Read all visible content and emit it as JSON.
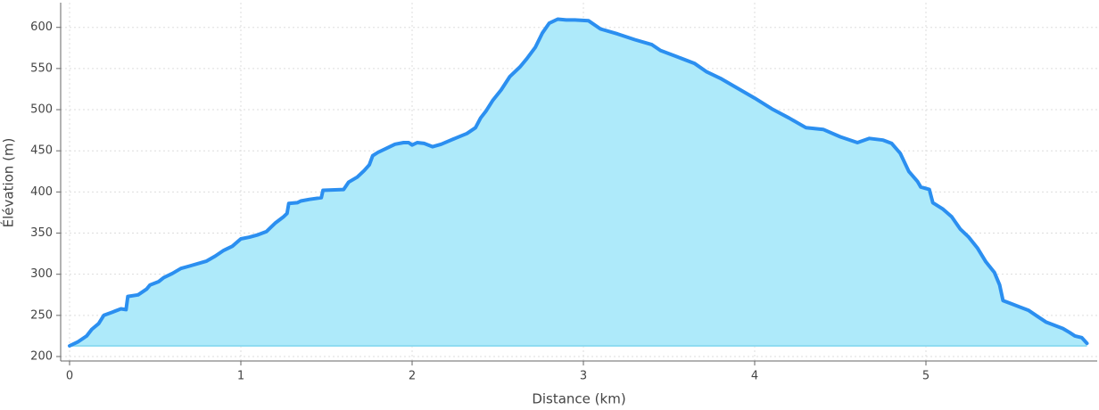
{
  "chart_data": {
    "type": "area",
    "x_label": "Distance (km)",
    "y_label": "Élévation (m)",
    "line_color": "#2b8ff0",
    "fill_color": "#aeeafa",
    "grid": true,
    "xlim": [
      -0.052,
      6.0
    ],
    "xticks": [
      0,
      1,
      2,
      3,
      4,
      5
    ],
    "ylim": [
      194.6,
      630
    ],
    "yticks": [
      200,
      250,
      300,
      350,
      400,
      450,
      500,
      550,
      600
    ],
    "x": [
      0,
      0.05,
      0.1,
      0.13,
      0.17,
      0.2,
      0.25,
      0.3,
      0.33,
      0.34,
      0.4,
      0.45,
      0.47,
      0.52,
      0.55,
      0.6,
      0.65,
      0.7,
      0.8,
      0.85,
      0.9,
      0.95,
      1.0,
      1.05,
      1.1,
      1.15,
      1.2,
      1.25,
      1.27,
      1.28,
      1.33,
      1.35,
      1.4,
      1.47,
      1.48,
      1.6,
      1.63,
      1.68,
      1.72,
      1.75,
      1.77,
      1.8,
      1.85,
      1.9,
      1.95,
      1.98,
      2.0,
      2.03,
      2.07,
      2.12,
      2.17,
      2.25,
      2.32,
      2.37,
      2.4,
      2.43,
      2.47,
      2.52,
      2.57,
      2.63,
      2.67,
      2.72,
      2.76,
      2.8,
      2.85,
      2.9,
      2.95,
      3.03,
      3.1,
      3.2,
      3.3,
      3.4,
      3.45,
      3.55,
      3.65,
      3.72,
      3.8,
      3.9,
      4.0,
      4.1,
      4.2,
      4.3,
      4.4,
      4.5,
      4.6,
      4.67,
      4.75,
      4.8,
      4.85,
      4.9,
      4.95,
      4.97,
      5.02,
      5.04,
      5.1,
      5.15,
      5.2,
      5.25,
      5.3,
      5.35,
      5.4,
      5.43,
      5.45,
      5.5,
      5.6,
      5.65,
      5.7,
      5.8,
      5.84,
      5.87,
      5.91,
      5.94
    ],
    "values": [
      213,
      218,
      225,
      233,
      240,
      250,
      254,
      258,
      257,
      273,
      275,
      282,
      287,
      291,
      296,
      301,
      307,
      310,
      316,
      322,
      329,
      334,
      343,
      345,
      348,
      352,
      362,
      370,
      374,
      386,
      387,
      389,
      391,
      393,
      402,
      403,
      412,
      418,
      426,
      433,
      444,
      448,
      453,
      458,
      460,
      460,
      457,
      460,
      459,
      455,
      458,
      465,
      471,
      478,
      490,
      498,
      511,
      524,
      540,
      552,
      562,
      576,
      593,
      605,
      610,
      609,
      609,
      608,
      598,
      592,
      585,
      579,
      572,
      564,
      556,
      546,
      538,
      526,
      514,
      501,
      490,
      478,
      476,
      467,
      460,
      465,
      463,
      459,
      447,
      425,
      413,
      406,
      403,
      387,
      379,
      370,
      355,
      345,
      332,
      315,
      302,
      287,
      268,
      264,
      256,
      249,
      242,
      234,
      229,
      225,
      223,
      216
    ]
  }
}
